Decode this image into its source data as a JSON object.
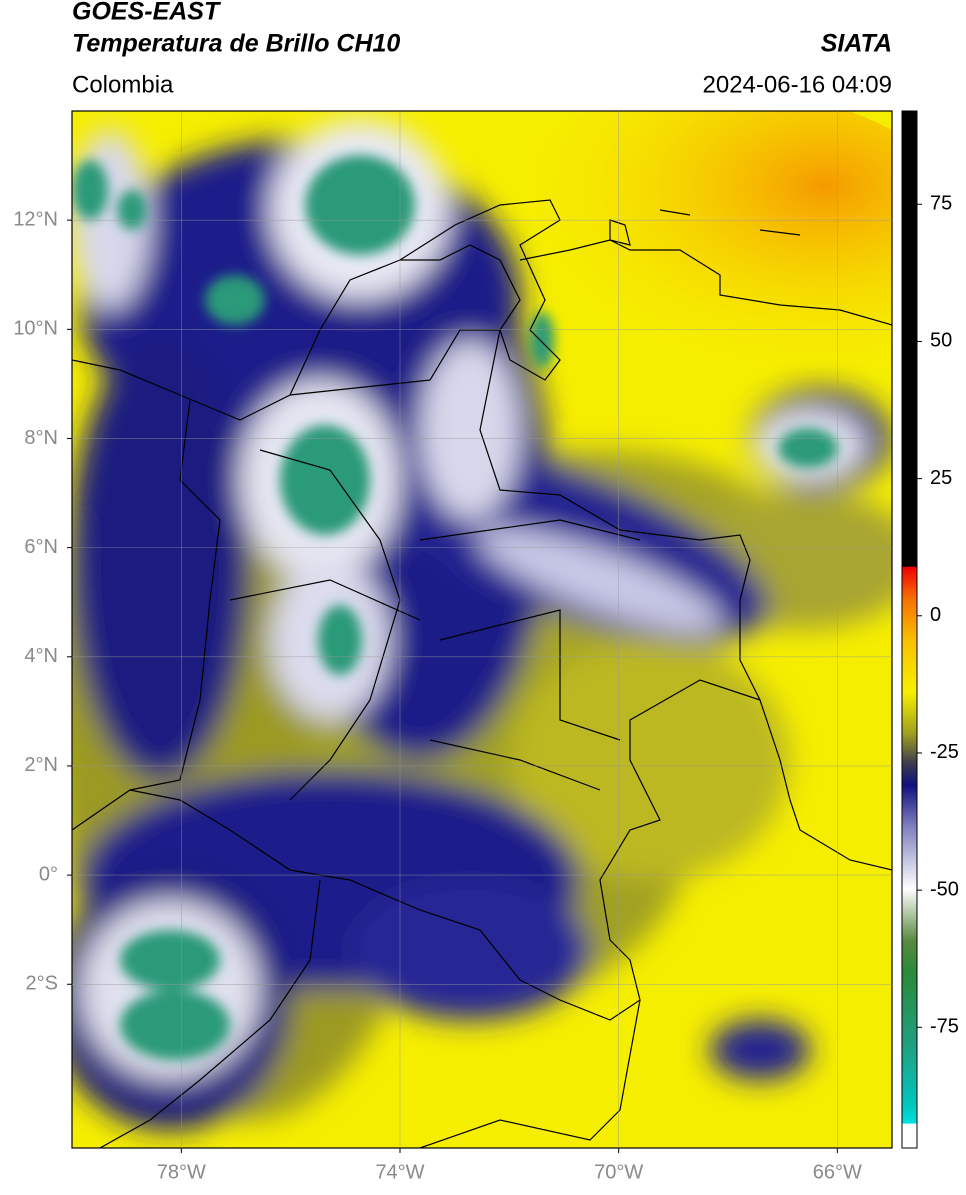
{
  "header": {
    "satellite": "GOES-EAST",
    "product": "Temperatura de Brillo CH10",
    "source": "SIATA",
    "region": "Colombia",
    "datetime": "2024-06-16 04:09"
  },
  "map": {
    "xlim": [
      -80,
      -65
    ],
    "ylim": [
      -5,
      14
    ],
    "grid": true,
    "xticks": [
      {
        "value": -78,
        "label": "78°W"
      },
      {
        "value": -74,
        "label": "74°W"
      },
      {
        "value": -70,
        "label": "70°W"
      },
      {
        "value": -66,
        "label": "66°W"
      }
    ],
    "yticks": [
      {
        "value": 12,
        "label": "12°N"
      },
      {
        "value": 10,
        "label": "10°N"
      },
      {
        "value": 8,
        "label": "8°N"
      },
      {
        "value": 6,
        "label": "6°N"
      },
      {
        "value": 4,
        "label": "4°N"
      },
      {
        "value": 2,
        "label": "2°N"
      },
      {
        "value": 0,
        "label": "0°"
      },
      {
        "value": -2,
        "label": "2°S"
      }
    ]
  },
  "colorbar": {
    "lim": [
      -97,
      92
    ],
    "ticks": [
      75,
      50,
      25,
      0,
      -25,
      -50,
      -75
    ]
  }
}
